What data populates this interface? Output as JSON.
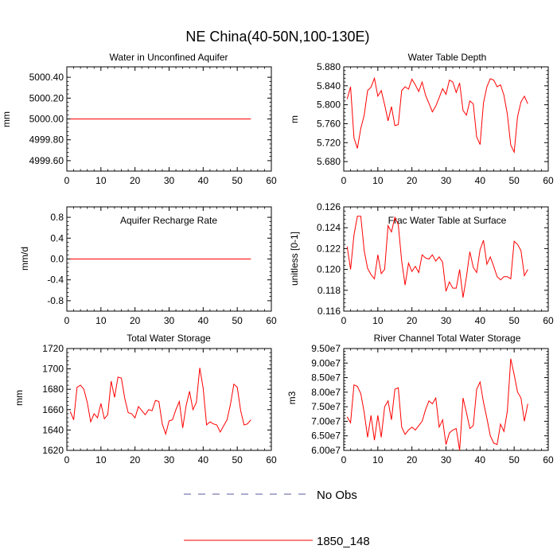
{
  "figure": {
    "title": "NE China(40-50N,100-130E)"
  },
  "legend": {
    "items": [
      {
        "label": "No Obs",
        "color": "#5a5aa0",
        "style": "dashed"
      },
      {
        "label": "1850_148",
        "color": "#ff0000",
        "style": "solid"
      }
    ]
  },
  "chart_data": [
    {
      "type": "line",
      "title": "Water in Unconfined Aquifer",
      "ylabel": "mm",
      "xlabel": "",
      "xlim": [
        0,
        60
      ],
      "ylim": [
        4999.5,
        5000.5
      ],
      "xticks": [
        0,
        10,
        20,
        30,
        40,
        50,
        60
      ],
      "yticks": [
        4999.6,
        4999.8,
        5000.0,
        5000.2,
        5000.4
      ],
      "ytick_labels": [
        "4999.60",
        "4999.80",
        "5000.00",
        "5000.20",
        "5000.40"
      ],
      "series": [
        {
          "name": "1850_148",
          "color": "#ff0000",
          "x": [
            1,
            54
          ],
          "y": [
            5000.0,
            5000.0
          ]
        }
      ]
    },
    {
      "type": "line",
      "title": "Water Table Depth",
      "ylabel": "m",
      "xlabel": "",
      "xlim": [
        0,
        60
      ],
      "ylim": [
        5.66,
        5.88
      ],
      "xticks": [
        0,
        10,
        20,
        30,
        40,
        50,
        60
      ],
      "yticks": [
        5.68,
        5.72,
        5.76,
        5.8,
        5.84,
        5.88
      ],
      "ytick_labels": [
        "5.680",
        "5.720",
        "5.760",
        "5.800",
        "5.840",
        "5.880"
      ],
      "series": [
        {
          "name": "1850_148",
          "color": "#ff0000",
          "x": [
            1,
            2,
            3,
            4,
            5,
            6,
            7,
            8,
            9,
            10,
            11,
            12,
            13,
            14,
            15,
            16,
            17,
            18,
            19,
            20,
            21,
            22,
            23,
            24,
            25,
            26,
            27,
            28,
            29,
            30,
            31,
            32,
            33,
            34,
            35,
            36,
            37,
            38,
            39,
            40,
            41,
            42,
            43,
            44,
            45,
            46,
            47,
            48,
            49,
            50,
            51,
            52,
            53,
            54
          ],
          "y": [
            5.812,
            5.838,
            5.73,
            5.708,
            5.75,
            5.778,
            5.83,
            5.837,
            5.856,
            5.818,
            5.83,
            5.8,
            5.766,
            5.796,
            5.756,
            5.758,
            5.83,
            5.838,
            5.833,
            5.854,
            5.842,
            5.828,
            5.848,
            5.82,
            5.803,
            5.785,
            5.797,
            5.815,
            5.834,
            5.822,
            5.852,
            5.848,
            5.826,
            5.846,
            5.788,
            5.778,
            5.808,
            5.802,
            5.732,
            5.716,
            5.804,
            5.838,
            5.855,
            5.852,
            5.838,
            5.842,
            5.82,
            5.78,
            5.715,
            5.7,
            5.775,
            5.806,
            5.818,
            5.802
          ]
        }
      ]
    },
    {
      "type": "line",
      "title": "Aquifer Recharge Rate",
      "ylabel": "mm/d",
      "xlabel": "",
      "xlim": [
        0,
        60
      ],
      "ylim": [
        -1.0,
        1.0
      ],
      "xticks": [
        0,
        10,
        20,
        30,
        40,
        50,
        60
      ],
      "yticks": [
        -0.8,
        -0.4,
        0.0,
        0.4,
        0.8
      ],
      "ytick_labels": [
        "-0.8",
        "-0.4",
        "0.0",
        "0.4",
        "0.8"
      ],
      "series": [
        {
          "name": "1850_148",
          "color": "#ff0000",
          "x": [
            1,
            54
          ],
          "y": [
            0.0,
            0.0
          ]
        }
      ]
    },
    {
      "type": "line",
      "title": "Frac Water Table at Surface",
      "ylabel": "unitless [0-1]",
      "xlabel": "",
      "xlim": [
        0,
        60
      ],
      "ylim": [
        0.116,
        0.126
      ],
      "xticks": [
        0,
        10,
        20,
        30,
        40,
        50,
        60
      ],
      "yticks": [
        0.116,
        0.118,
        0.12,
        0.122,
        0.124,
        0.126
      ],
      "ytick_labels": [
        "0.116",
        "0.118",
        "0.120",
        "0.122",
        "0.124",
        "0.126"
      ],
      "series": [
        {
          "name": "1850_148",
          "color": "#ff0000",
          "x": [
            1,
            2,
            3,
            4,
            5,
            6,
            7,
            8,
            9,
            10,
            11,
            12,
            13,
            14,
            15,
            16,
            17,
            18,
            19,
            20,
            21,
            22,
            23,
            24,
            25,
            26,
            27,
            28,
            29,
            30,
            31,
            32,
            33,
            34,
            35,
            36,
            37,
            38,
            39,
            40,
            41,
            42,
            43,
            44,
            45,
            46,
            47,
            48,
            49,
            50,
            51,
            52,
            53,
            54
          ],
          "y": [
            0.1222,
            0.12,
            0.1233,
            0.1251,
            0.1251,
            0.1218,
            0.1201,
            0.1195,
            0.1191,
            0.1214,
            0.1196,
            0.12,
            0.1242,
            0.1236,
            0.125,
            0.1243,
            0.1208,
            0.1185,
            0.1206,
            0.1198,
            0.1203,
            0.1197,
            0.1214,
            0.1211,
            0.121,
            0.1214,
            0.1208,
            0.1212,
            0.1207,
            0.1179,
            0.1188,
            0.1182,
            0.1182,
            0.12,
            0.1173,
            0.1193,
            0.1217,
            0.1202,
            0.1197,
            0.1219,
            0.1228,
            0.1205,
            0.1212,
            0.1203,
            0.1193,
            0.119,
            0.1193,
            0.1193,
            0.1191,
            0.1227,
            0.1224,
            0.1218,
            0.1194,
            0.12
          ]
        }
      ]
    },
    {
      "type": "line",
      "title": "Total Water Storage",
      "ylabel": "mm",
      "xlabel": "",
      "xlim": [
        0,
        60
      ],
      "ylim": [
        1620,
        1720
      ],
      "xticks": [
        0,
        10,
        20,
        30,
        40,
        50,
        60
      ],
      "yticks": [
        1620,
        1640,
        1660,
        1680,
        1700,
        1720
      ],
      "ytick_labels": [
        "1620",
        "1640",
        "1660",
        "1680",
        "1700",
        "1720"
      ],
      "series": [
        {
          "name": "1850_148",
          "color": "#ff0000",
          "x": [
            1,
            2,
            3,
            4,
            5,
            6,
            7,
            8,
            9,
            10,
            11,
            12,
            13,
            14,
            15,
            16,
            17,
            18,
            19,
            20,
            21,
            22,
            23,
            24,
            25,
            26,
            27,
            28,
            29,
            30,
            31,
            32,
            33,
            34,
            35,
            36,
            37,
            38,
            39,
            40,
            41,
            42,
            43,
            44,
            45,
            46,
            47,
            48,
            49,
            50,
            51,
            52,
            53,
            54
          ],
          "y": [
            1658,
            1650,
            1682,
            1684,
            1680,
            1667,
            1648,
            1656,
            1652,
            1666,
            1651,
            1655,
            1688,
            1672,
            1692,
            1691,
            1671,
            1657,
            1656,
            1652,
            1663,
            1659,
            1655,
            1660,
            1659,
            1669,
            1668,
            1646,
            1636,
            1649,
            1650,
            1660,
            1668,
            1642,
            1664,
            1678,
            1660,
            1667,
            1701,
            1681,
            1645,
            1648,
            1646,
            1645,
            1638,
            1644,
            1650,
            1665,
            1685,
            1682,
            1659,
            1645,
            1646,
            1650
          ]
        }
      ]
    },
    {
      "type": "line",
      "title": "River Channel Total Water Storage",
      "ylabel": "m3",
      "xlabel": "",
      "xlim": [
        0,
        60
      ],
      "ylim": [
        60000000,
        95000000
      ],
      "xticks": [
        0,
        10,
        20,
        30,
        40,
        50,
        60
      ],
      "yticks": [
        60000000,
        65000000,
        70000000,
        75000000,
        80000000,
        85000000,
        90000000,
        95000000
      ],
      "ytick_labels": [
        "6.00e7",
        "6.50e7",
        "7.00e7",
        "7.50e7",
        "8.00e7",
        "8.50e7",
        "9.00e7",
        "9.50e7"
      ],
      "series": [
        {
          "name": "1850_148",
          "color": "#ff0000",
          "x": [
            1,
            2,
            3,
            4,
            5,
            6,
            7,
            8,
            9,
            10,
            11,
            12,
            13,
            14,
            15,
            16,
            17,
            18,
            19,
            20,
            21,
            22,
            23,
            24,
            25,
            26,
            27,
            28,
            29,
            30,
            31,
            32,
            33,
            34,
            35,
            36,
            37,
            38,
            39,
            40,
            41,
            42,
            43,
            44,
            45,
            46,
            47,
            48,
            49,
            50,
            51,
            52,
            53,
            54
          ],
          "y": [
            71500000,
            69500000,
            82500000,
            82000000,
            79500000,
            73000000,
            64500000,
            72000000,
            63500000,
            72000000,
            64500000,
            75000000,
            77000000,
            70500000,
            81000000,
            81500000,
            68000000,
            65500000,
            67000000,
            68000000,
            67000000,
            68500000,
            70000000,
            74000000,
            77000000,
            76000000,
            78000000,
            68000000,
            70500000,
            62000000,
            66000000,
            67000000,
            67500000,
            60000000,
            78000000,
            73000000,
            67500000,
            68500000,
            81000000,
            83500000,
            76500000,
            71000000,
            65000000,
            62500000,
            62000000,
            69000000,
            66500000,
            73500000,
            91500000,
            86000000,
            80000000,
            78000000,
            70000000,
            76000000
          ]
        }
      ]
    }
  ]
}
